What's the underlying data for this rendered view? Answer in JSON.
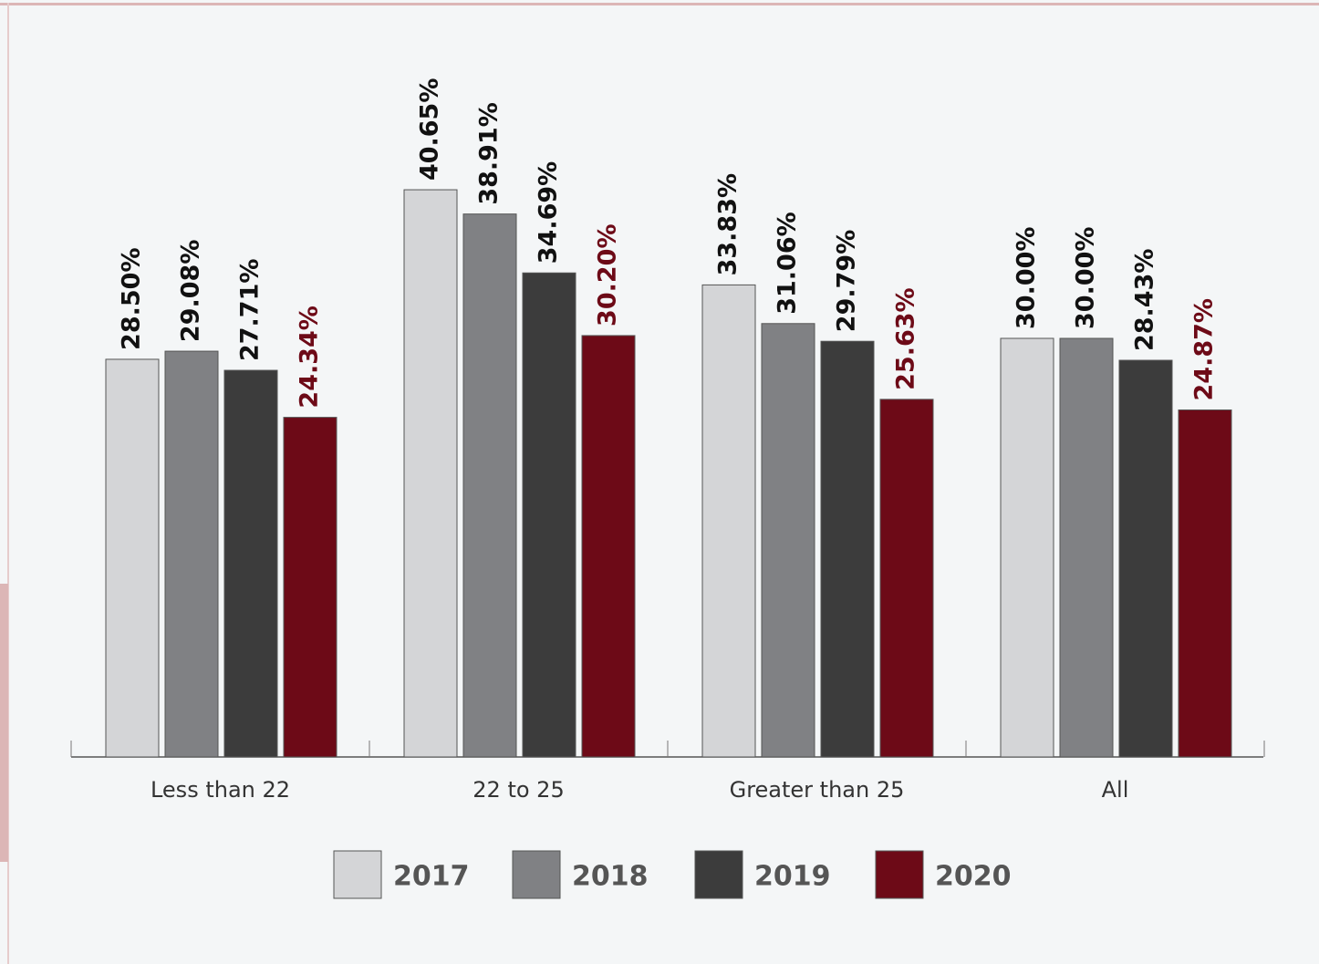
{
  "chart_data": {
    "type": "bar",
    "categories": [
      "Less than 22",
      "22 to 25",
      "Greater than 25",
      "All"
    ],
    "series": [
      {
        "name": "2017",
        "color": "#d4d5d7",
        "values": [
          28.5,
          40.65,
          33.83,
          30.0
        ],
        "value_labels": [
          "28.50%",
          "40.65%",
          "33.83%",
          "30.00%"
        ],
        "label_color": "#111111"
      },
      {
        "name": "2018",
        "color": "#808184",
        "values": [
          29.08,
          38.91,
          31.06,
          30.0
        ],
        "value_labels": [
          "29.08%",
          "38.91%",
          "31.06%",
          "30.00%"
        ],
        "label_color": "#111111"
      },
      {
        "name": "2019",
        "color": "#3c3c3c",
        "values": [
          27.71,
          34.69,
          29.79,
          28.43
        ],
        "value_labels": [
          "27.71%",
          "34.69%",
          "29.79%",
          "28.43%"
        ],
        "label_color": "#111111"
      },
      {
        "name": "2020",
        "color": "#6d0a17",
        "values": [
          24.34,
          30.2,
          25.63,
          24.87
        ],
        "value_labels": [
          "24.34%",
          "30.20%",
          "25.63%",
          "24.87%"
        ],
        "label_color": "#6d0a17"
      }
    ]
  }
}
